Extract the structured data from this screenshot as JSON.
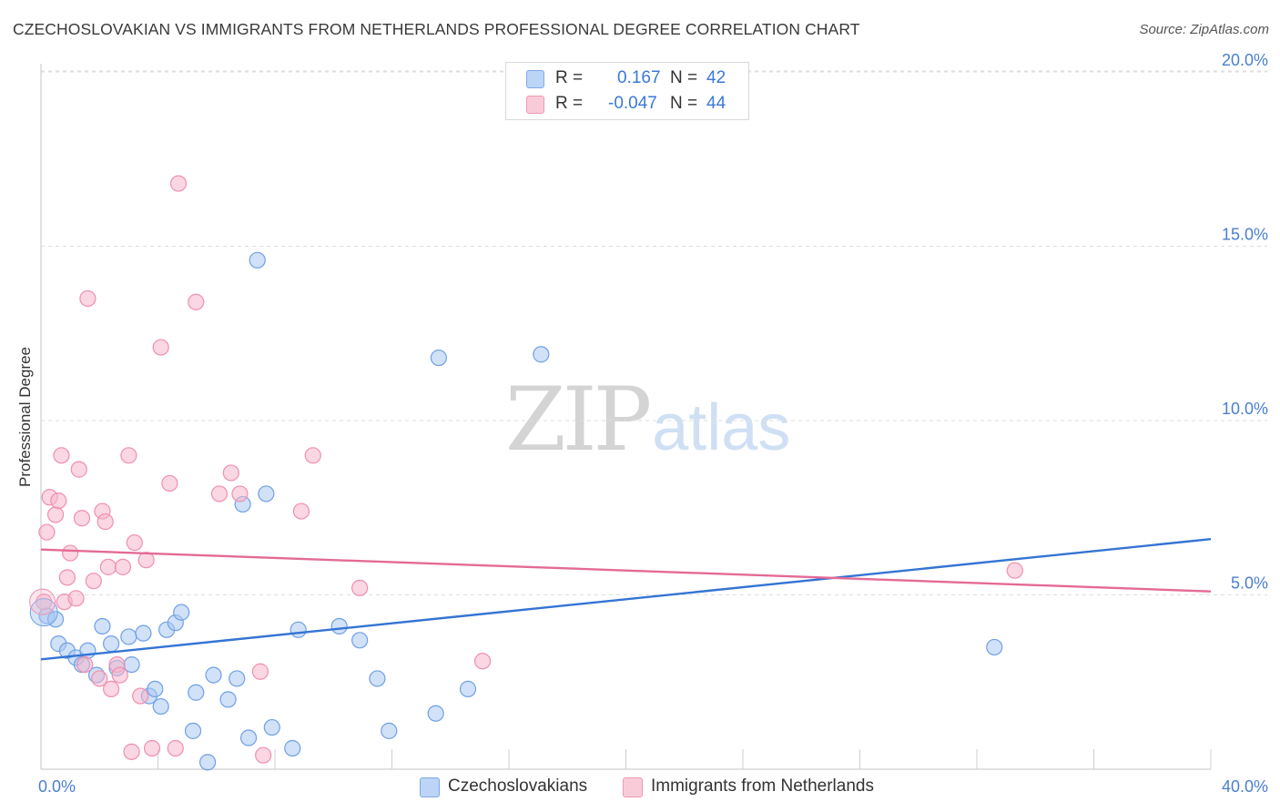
{
  "header": {
    "title": "CZECHOSLOVAKIAN VS IMMIGRANTS FROM NETHERLANDS PROFESSIONAL DEGREE CORRELATION CHART",
    "source": "Source: ZipAtlas.com"
  },
  "watermark": {
    "zip": "ZIP",
    "atlas": "atlas"
  },
  "legend": {
    "rows": [
      {
        "r_label": "R =",
        "r_value": "0.167",
        "n_label": "N =",
        "n_value": "42",
        "color": "#a9c8f2"
      },
      {
        "r_label": "R =",
        "r_value": "-0.047",
        "n_label": "N =",
        "n_value": "44",
        "color": "#f6b7cb"
      }
    ]
  },
  "bottom_legend": {
    "items": [
      {
        "label": "Czechoslovakians",
        "color": "#a9c8f2"
      },
      {
        "label": "Immigrants from Netherlands",
        "color": "#f6b7cb"
      }
    ]
  },
  "chart_data": {
    "type": "scatter",
    "title": "CZECHOSLOVAKIAN VS IMMIGRANTS FROM NETHERLANDS PROFESSIONAL DEGREE CORRELATION CHART",
    "xlabel": "",
    "ylabel": "Professional Degree",
    "xlim": [
      0,
      40
    ],
    "ylim": [
      0,
      20.5
    ],
    "x_tick_labels": [
      "0.0%",
      "40.0%"
    ],
    "y_ticks": [
      5,
      10,
      15,
      20
    ],
    "y_tick_labels": [
      "5.0%",
      "10.0%",
      "15.0%",
      "20.0%"
    ],
    "grid": true,
    "legend_position": "top-center",
    "series": [
      {
        "name": "Czechoslovakians",
        "color": "#6fa0e6",
        "fill": "#a9c8f2",
        "trend": {
          "x": [
            0,
            40
          ],
          "y": [
            3.15,
            6.6
          ],
          "color": "#3474d4"
        },
        "points": [
          [
            0.2,
            4.4
          ],
          [
            0.5,
            4.3
          ],
          [
            0.6,
            3.6
          ],
          [
            0.9,
            3.4
          ],
          [
            1.2,
            3.2
          ],
          [
            1.4,
            3.0
          ],
          [
            1.6,
            3.4
          ],
          [
            1.9,
            2.7
          ],
          [
            2.1,
            4.1
          ],
          [
            2.4,
            3.6
          ],
          [
            2.6,
            2.9
          ],
          [
            3.0,
            3.8
          ],
          [
            3.1,
            3.0
          ],
          [
            3.5,
            3.9
          ],
          [
            3.7,
            2.1
          ],
          [
            3.9,
            2.3
          ],
          [
            4.1,
            1.8
          ],
          [
            4.3,
            4.0
          ],
          [
            4.6,
            4.2
          ],
          [
            4.8,
            4.5
          ],
          [
            5.2,
            1.1
          ],
          [
            5.3,
            2.2
          ],
          [
            5.7,
            0.2
          ],
          [
            5.9,
            2.7
          ],
          [
            6.4,
            2.0
          ],
          [
            6.7,
            2.6
          ],
          [
            6.9,
            7.6
          ],
          [
            7.1,
            0.9
          ],
          [
            7.4,
            14.6
          ],
          [
            7.7,
            7.9
          ],
          [
            7.9,
            1.2
          ],
          [
            8.6,
            0.6
          ],
          [
            8.8,
            4.0
          ],
          [
            10.2,
            4.1
          ],
          [
            10.9,
            3.7
          ],
          [
            11.5,
            2.6
          ],
          [
            11.9,
            1.1
          ],
          [
            13.5,
            1.6
          ],
          [
            13.6,
            11.8
          ],
          [
            14.6,
            2.3
          ],
          [
            17.1,
            11.9
          ],
          [
            32.6,
            3.5
          ]
        ]
      },
      {
        "name": "Immigrants from Netherlands",
        "color": "#ef8fb0",
        "fill": "#f6b7cb",
        "trend": {
          "x": [
            0,
            40
          ],
          "y": [
            6.3,
            5.1
          ],
          "color": "#e46a96"
        },
        "points": [
          [
            0.1,
            4.8
          ],
          [
            0.2,
            6.8
          ],
          [
            0.3,
            7.8
          ],
          [
            0.5,
            7.3
          ],
          [
            0.6,
            7.7
          ],
          [
            0.7,
            9.0
          ],
          [
            0.8,
            4.8
          ],
          [
            0.9,
            5.5
          ],
          [
            1.0,
            6.2
          ],
          [
            1.2,
            4.9
          ],
          [
            1.3,
            8.6
          ],
          [
            1.4,
            7.2
          ],
          [
            1.5,
            3.0
          ],
          [
            1.8,
            5.4
          ],
          [
            2.0,
            2.6
          ],
          [
            2.1,
            7.4
          ],
          [
            2.2,
            7.1
          ],
          [
            2.3,
            5.8
          ],
          [
            2.4,
            2.3
          ],
          [
            2.6,
            3.0
          ],
          [
            2.7,
            2.7
          ],
          [
            2.8,
            5.8
          ],
          [
            3.0,
            9.0
          ],
          [
            3.1,
            0.5
          ],
          [
            3.2,
            6.5
          ],
          [
            3.4,
            2.1
          ],
          [
            3.6,
            6.0
          ],
          [
            3.8,
            0.6
          ],
          [
            4.1,
            12.1
          ],
          [
            4.4,
            8.2
          ],
          [
            4.6,
            0.6
          ],
          [
            4.7,
            16.8
          ],
          [
            5.3,
            13.4
          ],
          [
            6.1,
            7.9
          ],
          [
            6.5,
            8.5
          ],
          [
            6.8,
            7.9
          ],
          [
            7.5,
            2.8
          ],
          [
            7.6,
            0.4
          ],
          [
            8.9,
            7.4
          ],
          [
            9.3,
            9.0
          ],
          [
            10.9,
            5.2
          ],
          [
            1.6,
            13.5
          ],
          [
            15.1,
            3.1
          ],
          [
            33.3,
            5.7
          ]
        ]
      }
    ]
  }
}
